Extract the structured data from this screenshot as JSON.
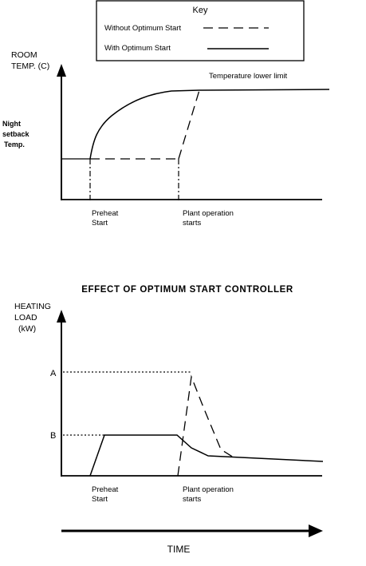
{
  "key": {
    "title": "Key",
    "without_label": "Without Optimum Start",
    "with_label": "With Optimum Start"
  },
  "top_chart": {
    "y_label_line1": "ROOM",
    "y_label_line2": "TEMP. (C)",
    "setback_line1": "Night",
    "setback_line2": "setback",
    "setback_line3": "Temp.",
    "limit_label": "Temperature lower limit",
    "preheat_line1": "Preheat",
    "preheat_line2": "Start",
    "plant_line1": "Plant operation",
    "plant_line2": "starts"
  },
  "middle_title": "EFFECT OF OPTIMUM START CONTROLLER",
  "bottom_chart": {
    "y_label_line1": "HEATING",
    "y_label_line2": "LOAD",
    "y_label_line3": "(kW)",
    "level_a": "A",
    "level_b": "B",
    "preheat_line1": "Preheat",
    "preheat_line2": "Start",
    "plant_line1": "Plant operation",
    "plant_line2": "starts"
  },
  "time_label": "TIME"
}
